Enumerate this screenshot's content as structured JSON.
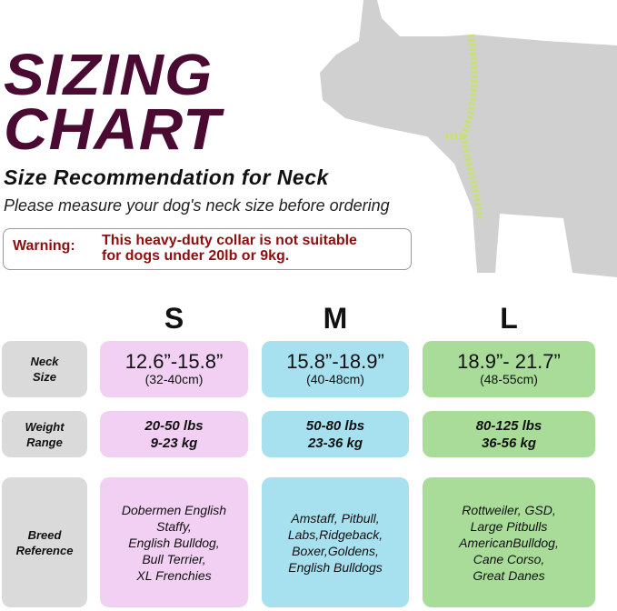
{
  "title": [
    "SIZING",
    "CHART"
  ],
  "subtitle": "Size Recommendation for Neck",
  "instruction": "Please measure your dog's neck size before ordering",
  "warning": {
    "label": "Warning:",
    "lines": [
      "This heavy-duty collar is not suitable",
      "for dogs under 20lb or 9kg."
    ]
  },
  "colors": {
    "title": "#4b0a32",
    "warning": "#8b1010",
    "small": "#f1d0f3",
    "medium": "#a7e0ee",
    "large": "#a9dc99",
    "label": "#dadada"
  },
  "sizes": [
    "S",
    "M",
    "L"
  ],
  "rows": {
    "neck": {
      "label": [
        "Neck",
        "Size"
      ],
      "values": [
        [
          "12.6”-15.8”",
          "(32-40cm)"
        ],
        [
          "15.8”-18.9”",
          "(40-48cm)"
        ],
        [
          "18.9”- 21.7”",
          "(48-55cm)"
        ]
      ]
    },
    "weight": {
      "label": [
        "Weight",
        "Range"
      ],
      "values": [
        [
          "20-50 lbs",
          "9-23 kg"
        ],
        [
          "50-80 lbs",
          "23-36 kg"
        ],
        [
          "80-125 lbs",
          "36-56 kg"
        ]
      ]
    },
    "breed": {
      "label": [
        "Breed",
        "Reference"
      ],
      "values": [
        [
          "Dobermen English",
          "Staffy,",
          "English Bulldog,",
          "Bull Terrier,",
          "XL Frenchies"
        ],
        [
          "Amstaff, Pitbull,",
          "Labs,Ridgeback,",
          "Boxer,Goldens,",
          "English Bulldogs"
        ],
        [
          "Rottweiler, GSD,",
          "Large Pitbulls",
          "AmericanBulldog,",
          "Cane Corso,",
          "Great Danes"
        ]
      ]
    }
  }
}
